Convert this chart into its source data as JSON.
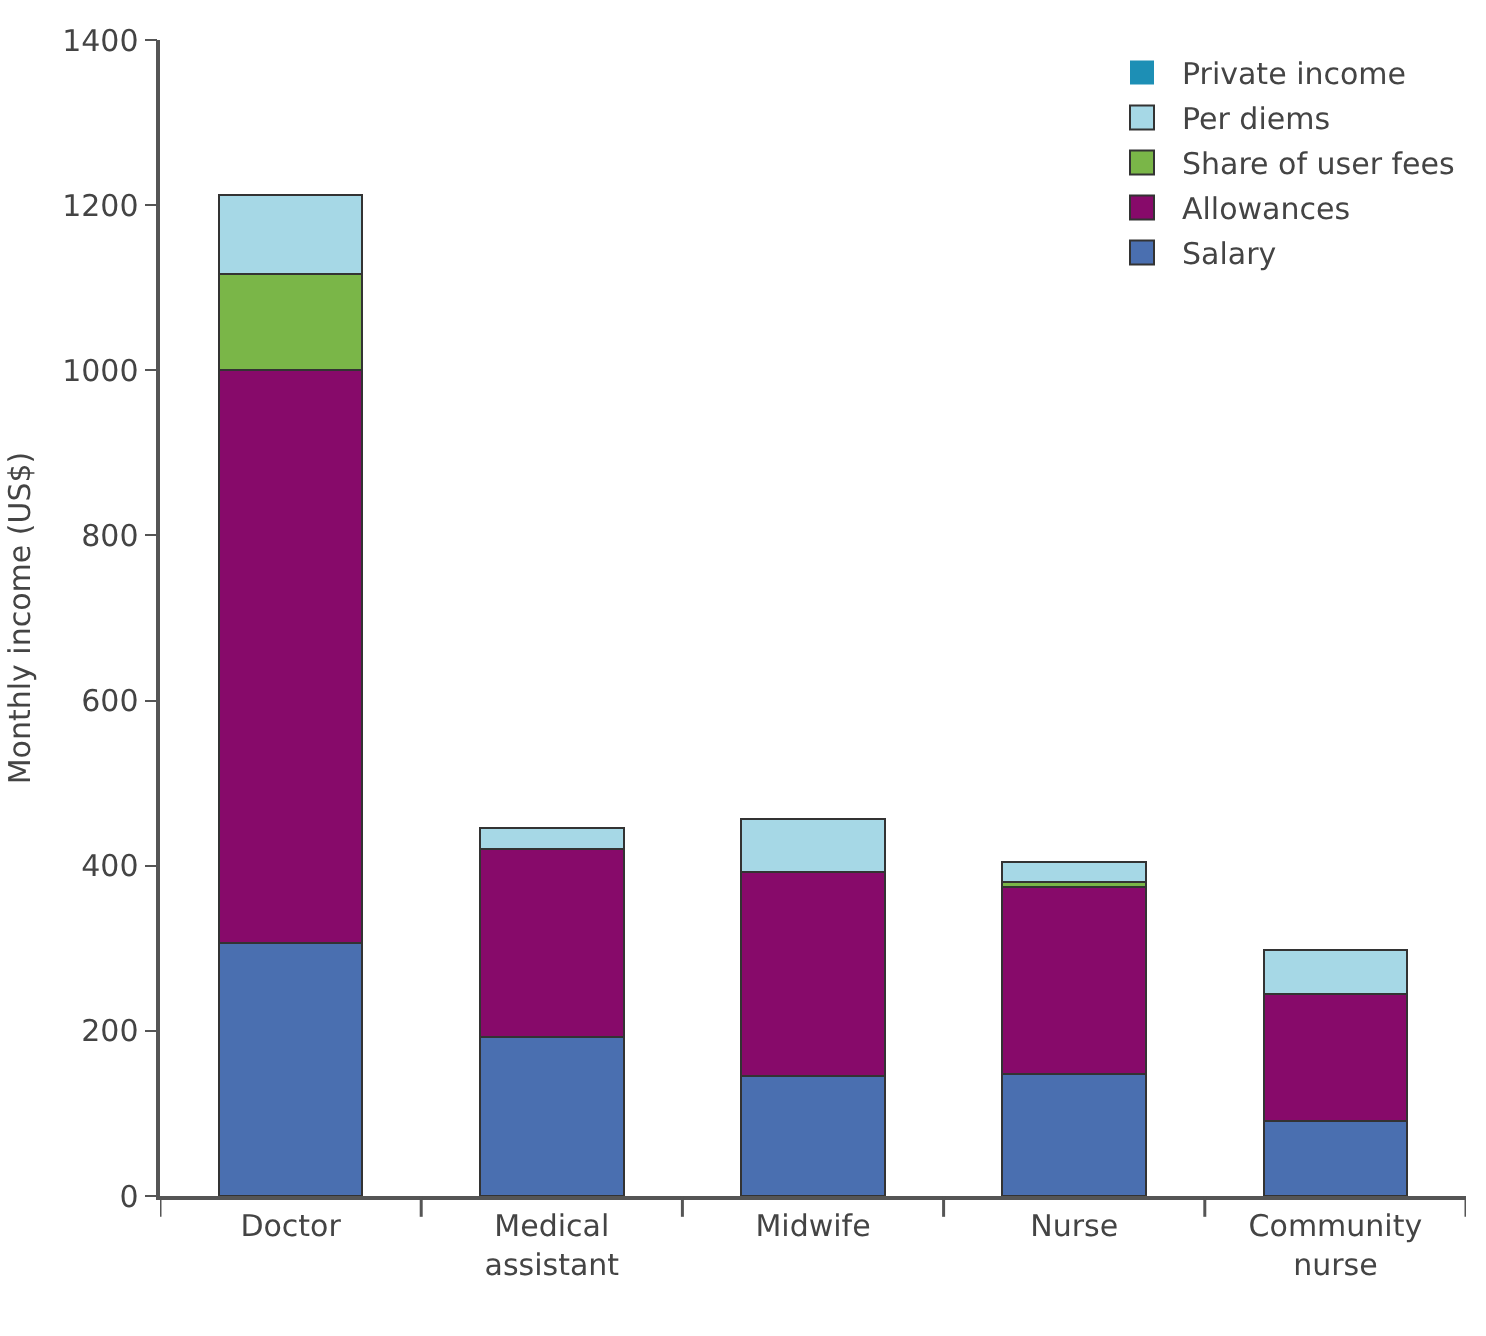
{
  "chart_data": {
    "type": "bar",
    "stacked": true,
    "ylabel": "Monthly income (US$)",
    "categories": [
      "Doctor",
      "Medical assistant",
      "Midwife",
      "Nurse",
      "Community nurse"
    ],
    "series": [
      {
        "name": "Salary",
        "color": "#4a6fb0",
        "values": [
          306,
          192,
          145,
          148,
          91
        ]
      },
      {
        "name": "Allowances",
        "color": "#870a6a",
        "values": [
          694,
          228,
          248,
          226,
          154
        ]
      },
      {
        "name": "Share of user fees",
        "color": "#7ab648",
        "values": [
          117,
          0,
          0,
          6,
          0
        ]
      },
      {
        "name": "Per diems",
        "color": "#a6d8e6",
        "values": [
          95,
          26,
          64,
          25,
          53
        ]
      },
      {
        "name": "Private income",
        "color": "#1d8fb5",
        "values": [
          0,
          0,
          0,
          0,
          0
        ]
      }
    ],
    "ylim": [
      0,
      1400
    ],
    "yticks": [
      0,
      200,
      400,
      600,
      800,
      1000,
      1200,
      1400
    ],
    "grid": false,
    "legend": "top right"
  }
}
